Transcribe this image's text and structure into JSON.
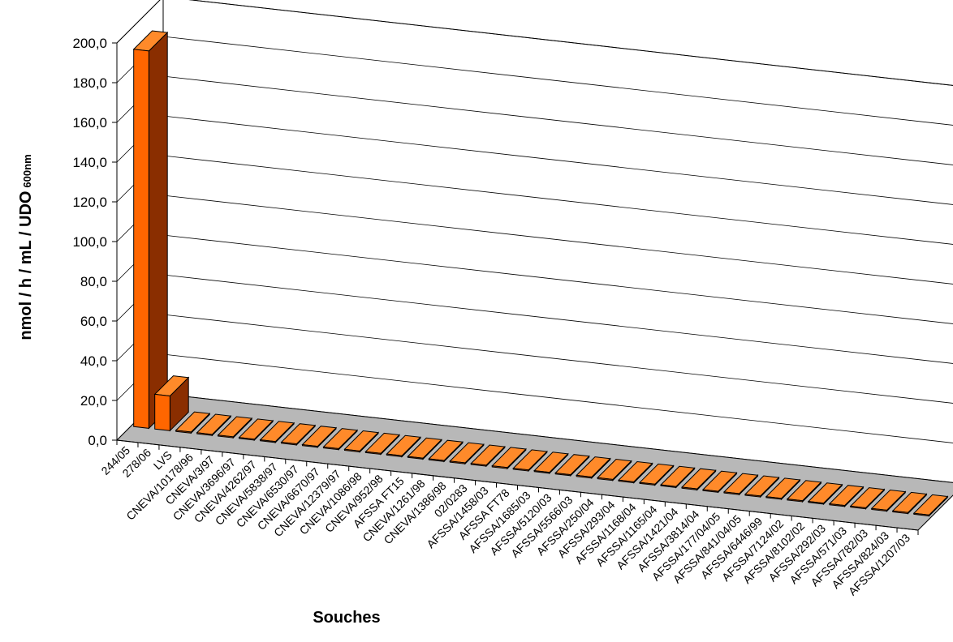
{
  "chart_data": {
    "type": "bar",
    "style": "3d-column",
    "title": "",
    "ylabel": "nmol / h / mL / UDO",
    "ylabel_subscript": "600nm",
    "xlabel": "Souches",
    "ylim": [
      0,
      200
    ],
    "y_ticks": [
      "0,0",
      "20,0",
      "40,0",
      "60,0",
      "80,0",
      "100,0",
      "120,0",
      "140,0",
      "160,0",
      "180,0",
      "200,0"
    ],
    "grid": true,
    "legend": "none",
    "categories": [
      "244/05",
      "278/06",
      "LVS",
      "CNEVA/10178/96",
      "CNEVA/3/97",
      "CNEVA/3696/97",
      "CNEVA/4262/97",
      "CNEVA/5838/97",
      "CNEVA/6530/97",
      "CNEVA/6670/97",
      "CNEVA/12379/97",
      "CNEVA/1086/98",
      "CNEVA/952/98",
      "AFSSA FT15",
      "CNEVA/1261/98",
      "CNEVA/1386/98",
      "02/0283",
      "AFSSA/1458/03",
      "AFSSA FT78",
      "AFSSA/1685/03",
      "AFSSA/5120/03",
      "AFSSA/5566/03",
      "AFSSA/250/04",
      "AFSSA/293/04",
      "AFSSA/1168/04",
      "AFSSA/1165/04",
      "AFSSA/1421/04",
      "AFSSA/3814/04",
      "AFSSA/177/04/05",
      "AFSSA/841/04/05",
      "AFSSA/6446/99",
      "AFSSA/7124/02",
      "AFSSA/8102/02",
      "AFSSA/292/03",
      "AFSSA/571/03",
      "AFSSA/782/03",
      "AFSSA/824/03",
      "AFSSA/1207/03"
    ],
    "values": [
      190.0,
      17.5,
      0.5,
      0.5,
      0.5,
      0.5,
      0.5,
      0.5,
      0.5,
      0.5,
      0.5,
      0.5,
      0.5,
      0.5,
      0.5,
      0.5,
      0.5,
      0.5,
      0.5,
      0.5,
      0.5,
      0.5,
      0.5,
      0.5,
      0.5,
      0.5,
      0.5,
      0.5,
      0.5,
      0.5,
      0.5,
      0.5,
      0.5,
      0.5,
      0.5,
      0.5,
      0.5,
      0.5
    ],
    "colors": {
      "bar_front": "#ff6600",
      "bar_side": "#8a2e00",
      "bar_top": "#ff8a2a",
      "floor": "#b8b8b8",
      "grid": "#000000"
    }
  }
}
